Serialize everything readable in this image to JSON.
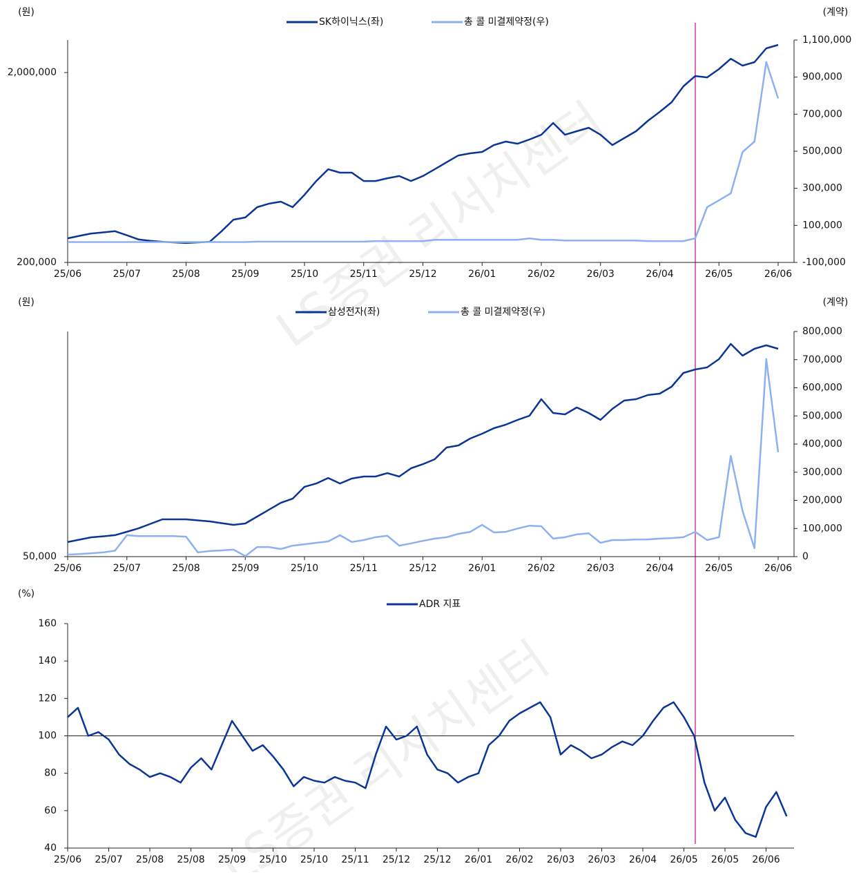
{
  "watermark": "LS증권 리서치센터",
  "chart_data": [
    {
      "type": "line",
      "y_unit": "(원)",
      "y2_unit": "(계약)",
      "ylog": true,
      "categories": [
        "25/06",
        null,
        null,
        null,
        null,
        "25/07",
        null,
        null,
        null,
        null,
        "25/08",
        null,
        null,
        null,
        null,
        "25/09",
        null,
        null,
        null,
        null,
        "25/10",
        null,
        null,
        null,
        null,
        "25/11",
        null,
        null,
        null,
        null,
        "25/12",
        null,
        null,
        null,
        null,
        "26/01",
        null,
        null,
        null,
        null,
        "26/02",
        null,
        null,
        null,
        null,
        "26/03",
        null,
        null,
        null,
        null,
        "26/04",
        null,
        null,
        null,
        null,
        "26/05",
        null,
        null,
        null,
        null,
        "26/06"
      ],
      "series": [
        {
          "name": "SK하이닉스(좌)",
          "color": "#0a3596",
          "values": [
            268000,
            276000,
            284000,
            288000,
            292000,
            278000,
            264000,
            260000,
            257000,
            255000,
            253000,
            255000,
            257000,
            292000,
            336000,
            345000,
            391000,
            408000,
            418000,
            391000,
            454000,
            537000,
            619000,
            594000,
            594000,
            537000,
            537000,
            555000,
            570000,
            537000,
            570000,
            619000,
            674000,
            732000,
            751000,
            764000,
            830000,
            866000,
            844000,
            888000,
            941000,
            1085000,
            941000,
            982000,
            1024000,
            941000,
            830000,
            903000,
            982000,
            1113000,
            1241000,
            1395000,
            1692000,
            1918000,
            1886000,
            2086000,
            2364000,
            2174000,
            2268000,
            2682000,
            2797000
          ]
        },
        {
          "name": "총 콜 미결제약정(우)",
          "color": "#8db0f2",
          "axis": "y2",
          "values": [
            10000,
            10000,
            10000,
            10000,
            10000,
            10000,
            10000,
            10000,
            10000,
            10000,
            10000,
            10000,
            10000,
            10000,
            10000,
            10000,
            12000,
            12000,
            12000,
            12000,
            12000,
            12000,
            12000,
            12000,
            12000,
            12000,
            15000,
            15000,
            15000,
            15000,
            15000,
            22000,
            22000,
            22000,
            22000,
            22000,
            22000,
            22000,
            22000,
            30000,
            22000,
            22000,
            18000,
            18000,
            18000,
            18000,
            18000,
            18000,
            18000,
            15000,
            15000,
            15000,
            15000,
            30000,
            198000,
            235000,
            273000,
            496000,
            552000,
            981000,
            785000
          ]
        }
      ],
      "ylim": [
        200000,
        2966000
      ],
      "yticks": [
        {
          "value": 200000,
          "label": "200,000"
        },
        {
          "value": 2000000,
          "label": "2,000,000"
        }
      ],
      "y2lim": [
        -100000,
        1100000
      ],
      "y2ticks": [
        {
          "value": -100000,
          "label": "-100,000"
        },
        {
          "value": 100000,
          "label": "100,000"
        },
        {
          "value": 300000,
          "label": "300,000"
        },
        {
          "value": 500000,
          "label": "500,000"
        },
        {
          "value": 700000,
          "label": "700,000"
        },
        {
          "value": 900000,
          "label": "900,000"
        },
        {
          "value": 1100000,
          "label": "1,100,000"
        }
      ]
    },
    {
      "type": "line",
      "y_unit": "(원)",
      "y2_unit": "(계약)",
      "ylog": true,
      "categories": [
        "25/06",
        null,
        null,
        null,
        null,
        "25/07",
        null,
        null,
        null,
        null,
        "25/08",
        null,
        null,
        null,
        null,
        "25/09",
        null,
        null,
        null,
        null,
        "25/10",
        null,
        null,
        null,
        null,
        "25/11",
        null,
        null,
        null,
        null,
        "25/12",
        null,
        null,
        null,
        null,
        "26/01",
        null,
        null,
        null,
        null,
        "26/02",
        null,
        null,
        null,
        null,
        "26/03",
        null,
        null,
        null,
        null,
        "26/04",
        null,
        null,
        null,
        null,
        "26/05",
        null,
        null,
        null,
        null,
        "26/06"
      ],
      "series": [
        {
          "name": "삼성전자(좌)",
          "color": "#0a3596",
          "values": [
            56700,
            57900,
            59100,
            59600,
            60200,
            62000,
            63900,
            66400,
            69000,
            69000,
            69000,
            68400,
            67800,
            66800,
            65800,
            66600,
            70700,
            75000,
            79600,
            82500,
            91400,
            94100,
            98700,
            94100,
            98200,
            99900,
            99900,
            102900,
            99900,
            107300,
            111200,
            116000,
            128400,
            130700,
            138800,
            144700,
            151800,
            156400,
            163000,
            169000,
            195000,
            173000,
            171000,
            181500,
            173000,
            163000,
            179400,
            192700,
            195000,
            202100,
            204500,
            217100,
            244600,
            252000,
            256600,
            275700,
            314400,
            284000,
            301500,
            310600,
            301500
          ]
        },
        {
          "name": "총 콜 미결제약정(우)",
          "color": "#8db0f2",
          "axis": "y2",
          "values": [
            7000,
            9000,
            12000,
            15000,
            21000,
            76000,
            73000,
            73000,
            73000,
            73000,
            71000,
            15000,
            20000,
            22000,
            25000,
            2000,
            34000,
            34000,
            27000,
            39000,
            44000,
            49000,
            54000,
            76000,
            52000,
            59000,
            69000,
            74000,
            39000,
            47000,
            56000,
            64000,
            69000,
            81000,
            88000,
            113000,
            86000,
            88000,
            100000,
            110000,
            108000,
            64000,
            69000,
            79000,
            83000,
            49000,
            59000,
            59000,
            61000,
            61000,
            64000,
            66000,
            69000,
            88000,
            59000,
            69000,
            358000,
            162000,
            30000,
            702000,
            371000
          ]
        }
      ],
      "ylim": [
        50000,
        350000
      ],
      "yticks": [
        {
          "value": 50000,
          "label": "50,000"
        }
      ],
      "y2lim": [
        0,
        800000
      ],
      "y2ticks": [
        0,
        {
          "value": 100000,
          "label": "100,000"
        },
        {
          "value": 200000,
          "label": "200,000"
        },
        {
          "value": 300000,
          "label": "300,000"
        },
        {
          "value": 400000,
          "label": "400,000"
        },
        {
          "value": 500000,
          "label": "500,000"
        },
        {
          "value": 600000,
          "label": "600,000"
        },
        {
          "value": 700000,
          "label": "700,000"
        },
        {
          "value": 800000,
          "label": "800,000"
        }
      ]
    },
    {
      "type": "line",
      "y_unit": "(%)",
      "categories": [
        "25/06",
        null,
        null,
        null,
        "25/07",
        null,
        null,
        null,
        "25/08",
        null,
        null,
        null,
        "25/08",
        null,
        null,
        null,
        "25/09",
        null,
        null,
        null,
        "25/10",
        null,
        null,
        null,
        "25/10",
        null,
        null,
        null,
        "25/11",
        null,
        null,
        null,
        "25/12",
        null,
        null,
        null,
        "25/12",
        null,
        null,
        null,
        "26/01",
        null,
        null,
        null,
        "26/02",
        null,
        null,
        null,
        "26/03",
        null,
        null,
        null,
        "26/03",
        null,
        null,
        null,
        "26/04",
        null,
        null,
        null,
        "26/05",
        null,
        null,
        null,
        "26/05",
        null,
        null,
        null,
        "26/06",
        null,
        null
      ],
      "series": [
        {
          "name": "ADR 지표",
          "color": "#0a3596",
          "values": [
            110,
            115,
            100,
            102,
            98,
            90,
            85,
            82,
            78,
            80,
            78,
            75,
            83,
            88,
            82,
            95,
            108,
            100,
            92,
            95,
            89,
            82,
            73,
            78,
            76,
            75,
            78,
            76,
            75,
            72,
            90,
            105,
            98,
            100,
            105,
            90,
            82,
            80,
            75,
            78,
            80,
            95,
            100,
            108,
            112,
            115,
            118,
            110,
            90,
            95,
            92,
            88,
            90,
            94,
            97,
            95,
            100,
            108,
            115,
            118,
            110,
            100,
            75,
            60,
            67,
            55,
            48,
            46,
            62,
            70,
            57
          ]
        }
      ],
      "ylim": [
        40,
        160
      ],
      "yticks": [
        40,
        60,
        80,
        100,
        120,
        140,
        160
      ],
      "reference_line": 100
    }
  ]
}
